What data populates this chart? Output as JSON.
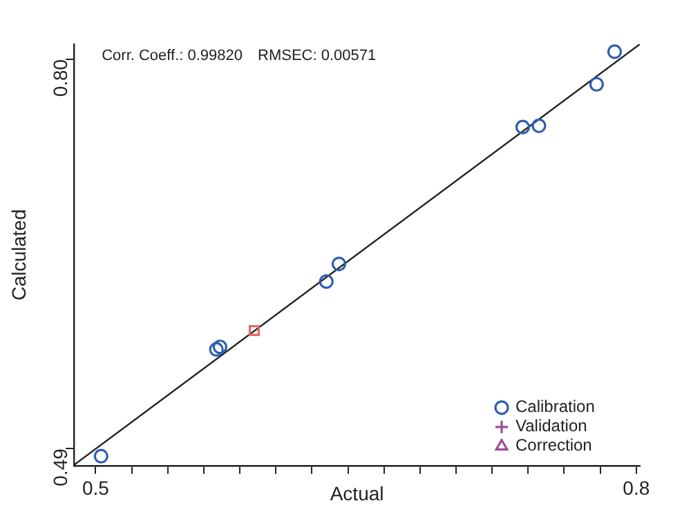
{
  "chart_data": {
    "type": "scatter",
    "xlabel": "Actual",
    "ylabel": "Calculated",
    "annotations": [
      "Corr. Coeff.: 0.99820   RMSEC: 0.00571"
    ],
    "xlim": [
      0.488,
      0.802
    ],
    "ylim": [
      0.4765,
      0.812
    ],
    "xticks": [
      0.5,
      {
        "value": 0.52,
        "label": null
      },
      {
        "value": 0.54,
        "label": null
      },
      {
        "value": 0.56,
        "label": null
      },
      {
        "value": 0.58,
        "label": null
      },
      {
        "value": 0.6,
        "label": null
      },
      {
        "value": 0.62,
        "label": null
      },
      {
        "value": 0.64,
        "label": null
      },
      {
        "value": 0.66,
        "label": null
      },
      {
        "value": 0.68,
        "label": null
      },
      {
        "value": 0.7,
        "label": null
      },
      {
        "value": 0.72,
        "label": null
      },
      {
        "value": 0.74,
        "label": null
      },
      {
        "value": 0.76,
        "label": null
      },
      {
        "value": 0.78,
        "label": null
      },
      0.8
    ],
    "yticks": [
      0.49,
      {
        "value": 0.8,
        "label": "0.80"
      }
    ],
    "grid": false,
    "legend": "bottom right",
    "series": [
      {
        "name": "Calibration",
        "marker": "circle",
        "color": "#2e5fb0",
        "x": [
          0.503,
          0.567,
          0.569,
          0.628,
          0.635,
          0.737,
          0.746,
          0.778,
          0.788
        ],
        "values": [
          0.484,
          0.569,
          0.571,
          0.623,
          0.637,
          0.746,
          0.747,
          0.78,
          0.806
        ]
      },
      {
        "name": "Validation",
        "marker": "cross",
        "color": "#9b4a9e"
      },
      {
        "name": "Correction",
        "marker": "triangle",
        "color": "#9b4a9e"
      },
      {
        "marker": "square",
        "color": "#e06666",
        "x": [
          0.588
        ],
        "values": [
          0.584
        ]
      },
      {
        "type": "line",
        "color": "#222222",
        "marker": "none",
        "line_style": "solid",
        "x": [
          0.488,
          0.802
        ],
        "values": [
          0.477,
          0.812
        ]
      }
    ]
  }
}
